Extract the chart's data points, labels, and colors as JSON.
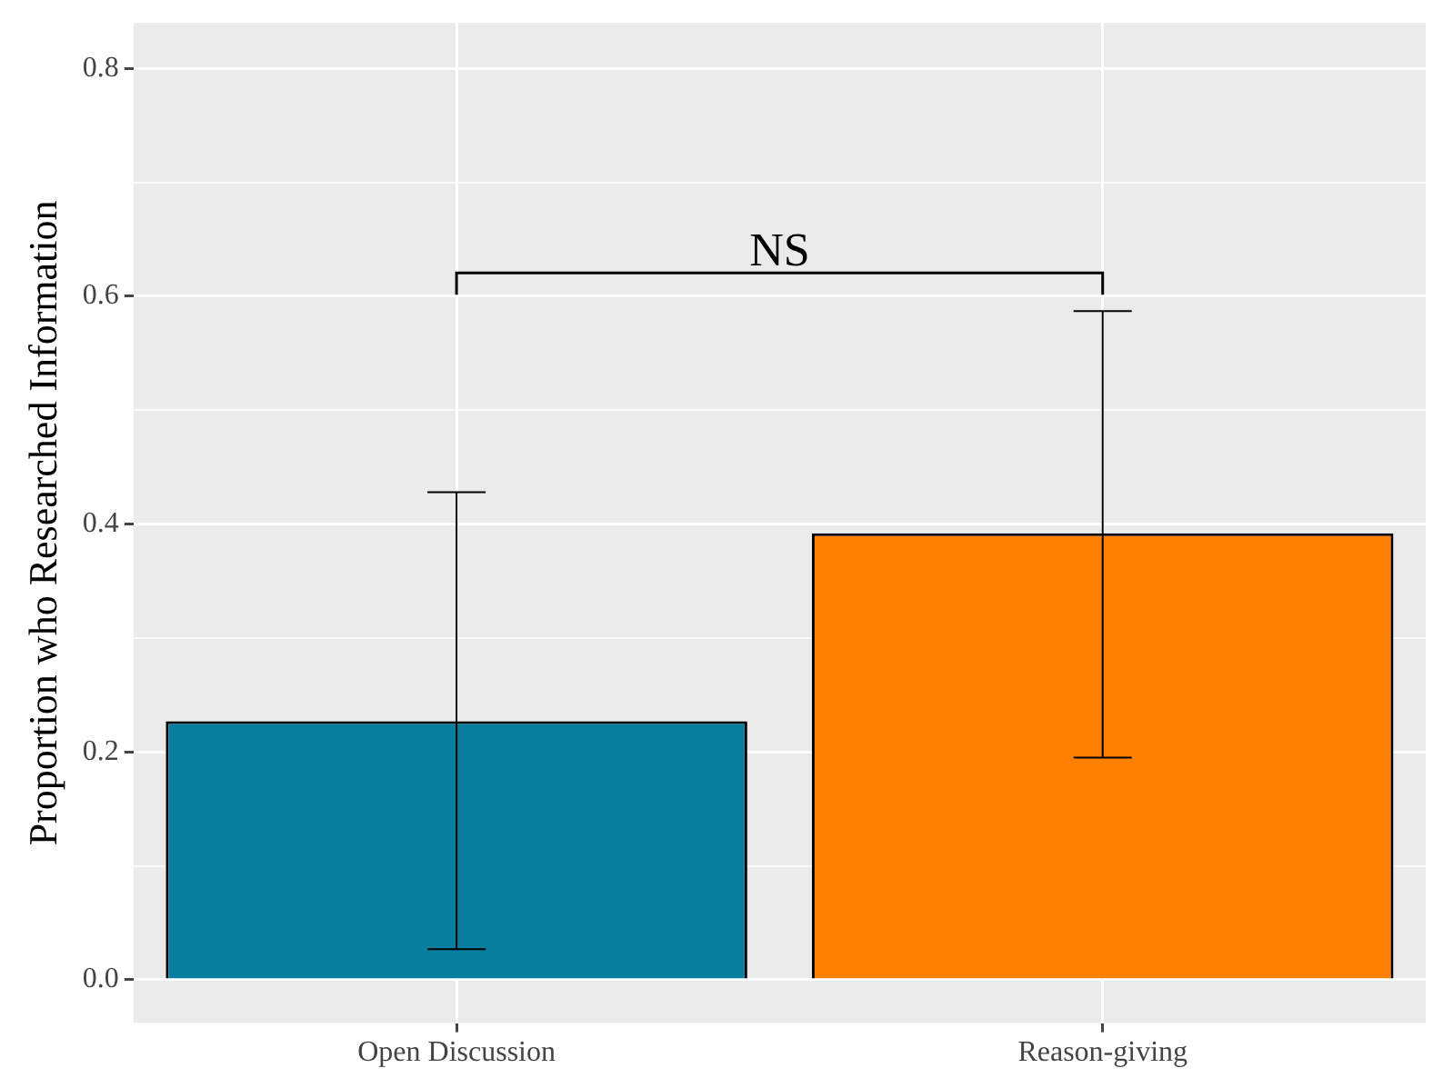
{
  "chart_data": {
    "type": "bar",
    "ylabel": "Proportion who Researched Information",
    "categories": [
      "Open Discussion",
      "Reason-giving"
    ],
    "values": [
      0.227,
      0.392
    ],
    "colors": [
      "#077e9e",
      "#ff8000"
    ],
    "errors": [
      [
        0.027,
        0.428
      ],
      [
        0.195,
        0.587
      ]
    ],
    "ylim": [
      -0.038,
      0.84
    ],
    "yticks": [
      {
        "value": 0,
        "label": "0.0"
      },
      {
        "value": 0.1,
        "label": null
      },
      {
        "value": 0.2,
        "label": "0.2"
      },
      {
        "value": 0.3,
        "label": null
      },
      {
        "value": 0.4,
        "label": "0.4"
      },
      {
        "value": 0.5,
        "label": null
      },
      {
        "value": 0.6,
        "label": "0.6"
      },
      {
        "value": 0.7,
        "label": null
      },
      {
        "value": 0.8,
        "label": "0.8"
      }
    ],
    "grid": true,
    "legend": false,
    "annotations": [
      "NS"
    ]
  }
}
